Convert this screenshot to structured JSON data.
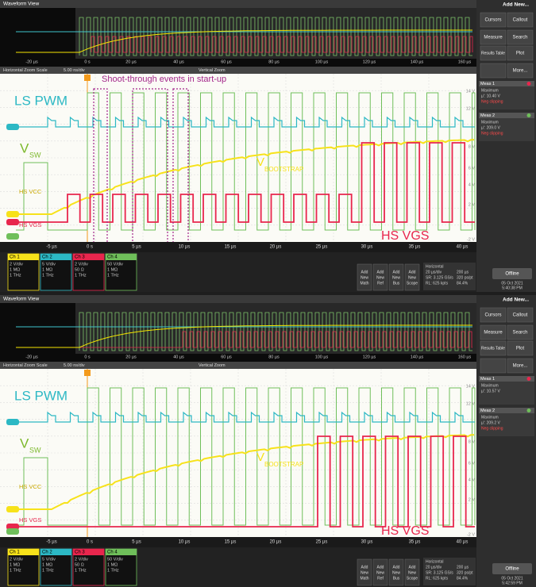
{
  "sidebar": {
    "title": "Add New...",
    "buttons": [
      "Cursors",
      "Callout",
      "Measure",
      "Search",
      "Results Table",
      "Plot",
      "More..."
    ]
  },
  "panels": [
    {
      "window_title": "Waveform View",
      "annotation": "Shoot-through events in start-up",
      "zoom_bar": [
        "Horizontal Zoom Scale",
        "5.00 ns/div",
        "Vertical Zoom"
      ],
      "labels": {
        "ls_pwm": "LS PWM",
        "vsw": "V",
        "vsw_sub": "SW",
        "hs_vcc": "HS VCC",
        "hs_vgs": "HS VGS",
        "vboot": "V",
        "vboot_sub": "BOOTSTRAP",
        "hs_vgs_big": "HS VGS"
      },
      "overview_times": [
        "-20 µs",
        "0 s",
        "20 µs",
        "40 µs",
        "60 µs",
        "80 µs",
        "100 µs",
        "120 µs",
        "140 µs",
        "160 µs"
      ],
      "times": [
        "-5 µs",
        "0 s",
        "5 µs",
        "10 µs",
        "15 µs",
        "20 µs",
        "25 µs",
        "30 µs",
        "35 µs",
        "40 µs"
      ],
      "volts": [
        "14 V",
        "12 V",
        "8 V",
        "6 V",
        "4 V",
        "2 V",
        "-2 V"
      ],
      "channels": [
        {
          "name": "Ch 1",
          "lines": [
            "2 V/div",
            "1 MΩ",
            "1 THz"
          ]
        },
        {
          "name": "Ch 2",
          "lines": [
            "5 V/div",
            "1 MΩ",
            "1 THz"
          ]
        },
        {
          "name": "Ch 3",
          "lines": [
            "2 V/div",
            "50 Ω",
            "1 THz"
          ]
        },
        {
          "name": "Ch 4",
          "lines": [
            "50 V/div",
            "1 MΩ",
            "1 THz"
          ]
        }
      ],
      "add_buttons": [
        [
          "Add",
          "New",
          "Math"
        ],
        [
          "Add",
          "New",
          "Ref"
        ],
        [
          "Add",
          "New",
          "Bus"
        ],
        [
          "Add",
          "New",
          "Scope"
        ]
      ],
      "horizontal": [
        "Horizontal",
        "20 µs/div",
        "200 µs",
        "SR: 3.125 GS/s",
        "320 ps/pt",
        "RL: 625 kpts",
        "84.4%"
      ],
      "meas": [
        {
          "name": "Meas 1",
          "lines": [
            "Maximum",
            "µ': 10.40 V",
            "Neg clipping"
          ]
        },
        {
          "name": "Meas 2",
          "lines": [
            "Maximum",
            "µ': 209.0 V",
            "Neg clipping"
          ]
        }
      ],
      "offline": "Offline",
      "date": [
        "05 Oct 2021",
        "5:40:38 PM"
      ]
    },
    {
      "window_title": "Waveform View",
      "zoom_bar": [
        "Horizontal Zoom Scale",
        "5.00 ns/div",
        "Vertical Zoom"
      ],
      "labels": {
        "ls_pwm": "LS PWM",
        "vsw": "V",
        "vsw_sub": "SW",
        "hs_vcc": "HS VCC",
        "hs_vgs": "HS VGS",
        "vboot": "V",
        "vboot_sub": "BOOTSTRAP",
        "hs_vgs_big": "HS VGS"
      },
      "overview_times": [
        "-20 µs",
        "0 s",
        "20 µs",
        "40 µs",
        "60 µs",
        "80 µs",
        "100 µs",
        "120 µs",
        "140 µs",
        "160 µs"
      ],
      "times": [
        "-5 µs",
        "0 s",
        "5 µs",
        "10 µs",
        "15 µs",
        "20 µs",
        "25 µs",
        "30 µs",
        "35 µs",
        "40 µs"
      ],
      "volts": [
        "14 V",
        "12 V",
        "8 V",
        "6 V",
        "4 V",
        "2 V",
        "-2 V"
      ],
      "channels": [
        {
          "name": "Ch 1",
          "lines": [
            "2 V/div",
            "1 MΩ",
            "1 THz"
          ]
        },
        {
          "name": "Ch 2",
          "lines": [
            "5 V/div",
            "1 MΩ",
            "1 THz"
          ]
        },
        {
          "name": "Ch 3",
          "lines": [
            "2 V/div",
            "50 Ω",
            "1 THz"
          ]
        },
        {
          "name": "Ch 4",
          "lines": [
            "50 V/div",
            "1 MΩ",
            "1 THz"
          ]
        }
      ],
      "add_buttons": [
        [
          "Add",
          "New",
          "Math"
        ],
        [
          "Add",
          "New",
          "Ref"
        ],
        [
          "Add",
          "New",
          "Bus"
        ],
        [
          "Add",
          "New",
          "Scope"
        ]
      ],
      "horizontal": [
        "Horizontal",
        "20 µs/div",
        "200 µs",
        "SR: 3.125 GS/s",
        "320 ps/pt",
        "RL: 625 kpts",
        "84.4%"
      ],
      "meas": [
        {
          "name": "Meas 1",
          "lines": [
            "Maximum",
            "µ': 10.57 V"
          ]
        },
        {
          "name": "Meas 2",
          "lines": [
            "Maximum",
            "µ': 209.2 V",
            "Neg clipping"
          ]
        }
      ],
      "offline": "Offline",
      "date": [
        "05 Oct 2021",
        "5:42:59 PM"
      ]
    }
  ]
}
